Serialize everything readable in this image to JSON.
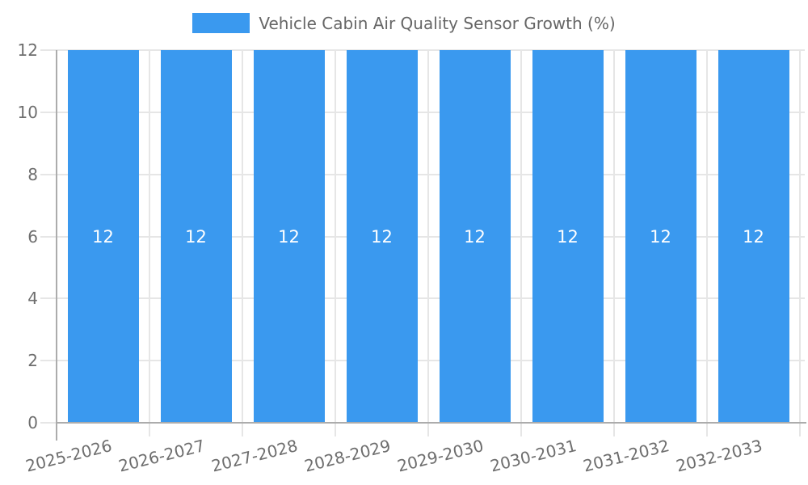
{
  "chart_data": {
    "type": "bar",
    "title": "Vehicle Cabin Air Quality Sensor Growth (%)",
    "legend": {
      "position": "top",
      "label": "Vehicle Cabin Air Quality Sensor Growth (%)"
    },
    "categories": [
      "2025-2026",
      "2026-2027",
      "2027-2028",
      "2028-2029",
      "2029-2030",
      "2030-2031",
      "2031-2032",
      "2032-2033"
    ],
    "values": [
      12,
      12,
      12,
      12,
      12,
      12,
      12,
      12
    ],
    "value_labels": [
      "12",
      "12",
      "12",
      "12",
      "12",
      "12",
      "12",
      "12"
    ],
    "xlabel": "",
    "ylabel": "",
    "ylim": [
      0,
      12
    ],
    "yticks": [
      "0",
      "2",
      "4",
      "6",
      "8",
      "10",
      "12"
    ],
    "grid": true,
    "x_label_rotation_deg": -14,
    "colors": {
      "bar": "#3A99EF",
      "grid": "#E6E6E6",
      "axis": "#ACACAC",
      "title_text": "#666666",
      "tick_text": "#6E6E6E",
      "value_label": "#FFFFFF",
      "background": "#FFFFFF"
    }
  }
}
